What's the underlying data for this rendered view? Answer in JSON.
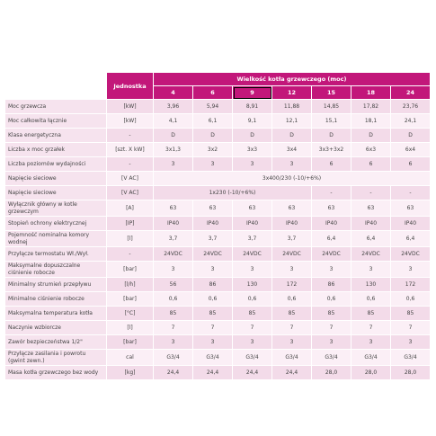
{
  "table": {
    "unit_header": "Jednostka",
    "group_header": "Wielkość kotła grzewczego (moc)",
    "columns": [
      "4",
      "6",
      "9",
      "12",
      "15",
      "18",
      "24"
    ],
    "rows": [
      {
        "label": "Moc grzewcza",
        "unit": "[kW]",
        "cells": [
          "3,96",
          "5,94",
          "8,91",
          "11,88",
          "14,85",
          "17,82",
          "23,76"
        ]
      },
      {
        "label": "Moc całkowita łącznie",
        "unit": "[kW]",
        "cells": [
          "4,1",
          "6,1",
          "9,1",
          "12,1",
          "15,1",
          "18,1",
          "24,1"
        ]
      },
      {
        "label": "Klasa energetyczna",
        "unit": "-",
        "cells": [
          "D",
          "D",
          "D",
          "D",
          "D",
          "D",
          "D"
        ]
      },
      {
        "label": "Liczba x moc grzałek",
        "unit": "[szt. X kW]",
        "cells": [
          "3x1,3",
          "3x2",
          "3x3",
          "3x4",
          "3x3+3x2",
          "6x3",
          "6x4"
        ]
      },
      {
        "label": "Liczba poziomów wydajności",
        "unit": "-",
        "cells": [
          "3",
          "3",
          "3",
          "3",
          "6",
          "6",
          "6"
        ]
      },
      {
        "label": "Napięcie sieciowe",
        "unit": "[V AC]",
        "cells": [
          "3x400/230 (-10/+6%)"
        ]
      },
      {
        "label": "Napięcie sieciowe",
        "unit": "[V AC]",
        "cells": [
          "1x230 (-10/+6%)",
          "-",
          "-",
          "-"
        ]
      },
      {
        "label": "Wyłącznik główny w kotle grzewczym",
        "unit": "[A]",
        "cells": [
          "63",
          "63",
          "63",
          "63",
          "63",
          "63",
          "63"
        ]
      },
      {
        "label": "Stopień ochrony elektrycznej",
        "unit": "[IP]",
        "cells": [
          "IP40",
          "IP40",
          "IP40",
          "IP40",
          "IP40",
          "IP40",
          "IP40"
        ]
      },
      {
        "label": "Pojemność nominalna komory wodnej",
        "unit": "[l]",
        "cells": [
          "3,7",
          "3,7",
          "3,7",
          "3,7",
          "6,4",
          "6,4",
          "6,4"
        ]
      },
      {
        "label": "Przyłącze termostatu Wł./Wył.",
        "unit": "-",
        "cells": [
          "24VDC",
          "24VDC",
          "24VDC",
          "24VDC",
          "24VDC",
          "24VDC",
          "24VDC"
        ]
      },
      {
        "label": "Maksymalne dopuszczalne ciśnienie robocze",
        "unit": "[bar]",
        "cells": [
          "3",
          "3",
          "3",
          "3",
          "3",
          "3",
          "3"
        ]
      },
      {
        "label": "Minimalny strumień przepływu",
        "unit": "[l/h]",
        "cells": [
          "56",
          "86",
          "130",
          "172",
          "86",
          "130",
          "172"
        ]
      },
      {
        "label": "Minimalne ciśnienie robocze",
        "unit": "[bar]",
        "cells": [
          "0,6",
          "0,6",
          "0,6",
          "0,6",
          "0,6",
          "0,6",
          "0,6"
        ]
      },
      {
        "label": "Maksymalna temperatura kotła",
        "unit": "[°C]",
        "cells": [
          "85",
          "85",
          "85",
          "85",
          "85",
          "85",
          "85"
        ]
      },
      {
        "label": "Naczynie wzbiorcze",
        "unit": "[l]",
        "cells": [
          "7",
          "7",
          "7",
          "7",
          "7",
          "7",
          "7"
        ]
      },
      {
        "label": "Zawór bezpieczeństwa 1/2\"",
        "unit": "[bar]",
        "cells": [
          "3",
          "3",
          "3",
          "3",
          "3",
          "3",
          "3"
        ]
      },
      {
        "label": "Przyłącze zasilania i powrotu (gwint zewn.)",
        "unit": "cal",
        "cells": [
          "G3/4",
          "G3/4",
          "G3/4",
          "G3/4",
          "G3/4",
          "G3/4",
          "G3/4"
        ]
      },
      {
        "label": "Masa kotła grzewczego bez wody",
        "unit": "[kg]",
        "cells": [
          "24,4",
          "24,4",
          "24,4",
          "24,4",
          "28,0",
          "28,0",
          "28,0"
        ]
      }
    ]
  }
}
